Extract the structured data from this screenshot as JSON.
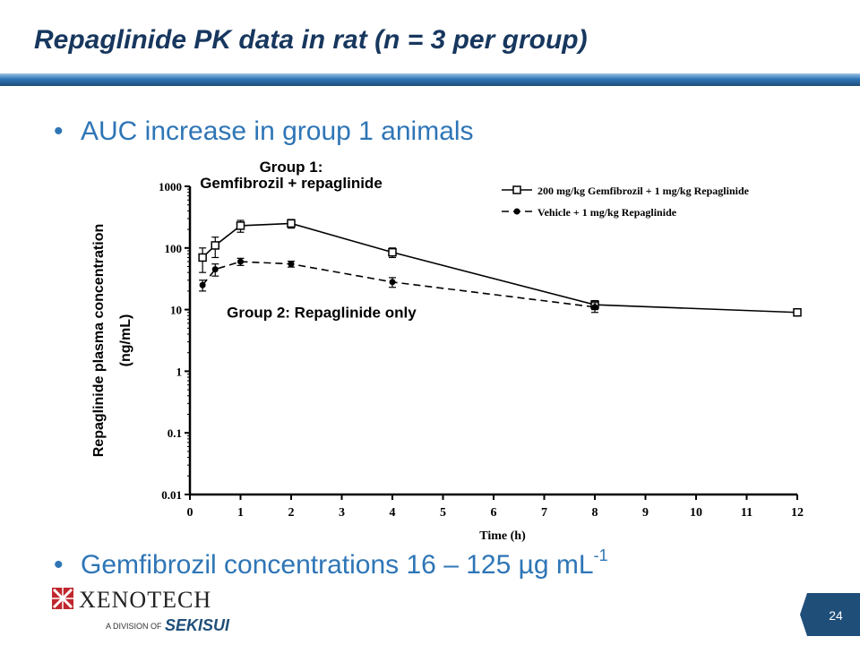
{
  "slide": {
    "title": "Repaglinide PK data in rat (n = 3 per group)",
    "bullets": [
      {
        "text": "AUC increase in group 1 animals"
      },
      {
        "text": "Gemfibrozil concentrations 16 – 125 µg mL",
        "sup": "-1"
      }
    ],
    "page_number": "24"
  },
  "logo": {
    "name": "XENOTECH",
    "subtitle": "A DIVISION OF",
    "parent": "SEKISUI",
    "mark_color": "#c0272d",
    "parent_color": "#1f4e79"
  },
  "colors": {
    "title": "#17375e",
    "bullet": "#2e75b6",
    "accent_bar": "#2e75b6",
    "page_tab": "#1f4e79"
  },
  "chart_data": {
    "type": "line",
    "ylabel": "Repaglinide plasma concentration (ng/mL)",
    "xlabel": "Time (h)",
    "y_scale": "log",
    "ylim": [
      0.01,
      1000
    ],
    "xlim": [
      0,
      12
    ],
    "x_ticks": [
      "0",
      "1",
      "2",
      "3",
      "4",
      "5",
      "6",
      "7",
      "8",
      "9",
      "10",
      "11",
      "12"
    ],
    "y_ticks": [
      "0.01",
      "0.1",
      "1",
      "10",
      "100",
      "1000"
    ],
    "grid": false,
    "legend_position": "top-right",
    "series": [
      {
        "name": "200 mg/kg Gemfibrozil + 1 mg/kg Repaglinide",
        "marker": "open-square",
        "line": "solid",
        "x": [
          0.25,
          0.5,
          1,
          2,
          4,
          8,
          12
        ],
        "y": [
          70,
          110,
          230,
          250,
          85,
          12,
          9
        ],
        "err": [
          30,
          40,
          50,
          40,
          15,
          2,
          1
        ]
      },
      {
        "name": "Vehicle + 1 mg/kg Repaglinide",
        "marker": "filled-circle",
        "line": "dashed",
        "x": [
          0.25,
          0.5,
          1,
          2,
          4,
          8
        ],
        "y": [
          25,
          45,
          60,
          55,
          28,
          11
        ],
        "err": [
          5,
          10,
          8,
          6,
          5,
          2
        ]
      }
    ],
    "annotations": [
      {
        "text": "Group 1:",
        "x": 2.0,
        "y": 2100
      },
      {
        "text": "Gemfibrozil + repaglinide",
        "x": 2.0,
        "y": 1150
      },
      {
        "text": "Group 2: Repaglinide only",
        "x": 2.6,
        "y": 9
      }
    ]
  }
}
